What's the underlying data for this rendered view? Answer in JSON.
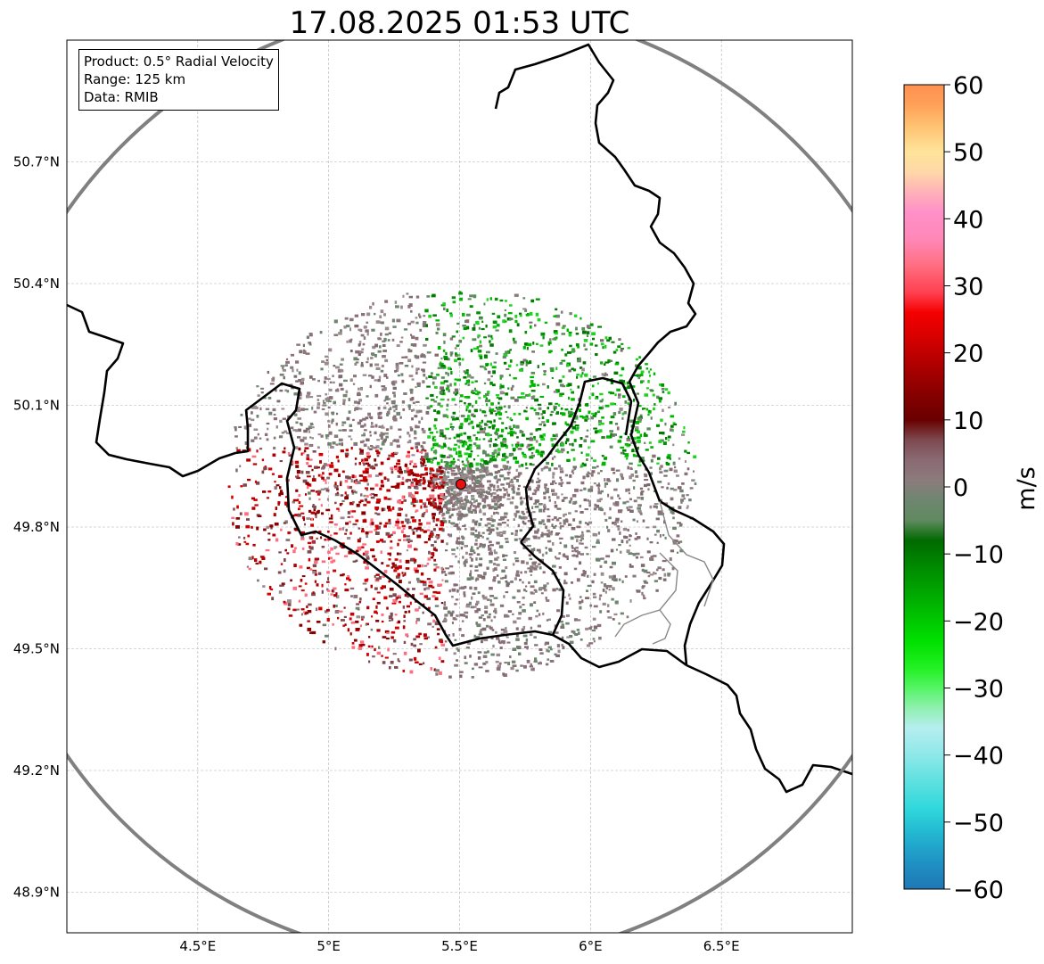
{
  "title": "17.08.2025 01:53 UTC",
  "info": {
    "product": "Product: 0.5° Radial Velocity",
    "range": "Range: 125 km",
    "data": "Data: RMIB"
  },
  "map": {
    "lon_range": [
      4.0,
      7.0
    ],
    "lat_range": [
      48.8,
      51.0
    ],
    "lon_ticks": [
      4.5,
      5.0,
      5.5,
      6.0,
      6.5
    ],
    "lon_tick_labels": [
      "4.5°E",
      "5°E",
      "5.5°E",
      "6°E",
      "6.5°E"
    ],
    "lat_ticks": [
      48.9,
      49.2,
      49.5,
      49.8,
      50.1,
      50.4,
      50.7
    ],
    "lat_tick_labels": [
      "48.9°N",
      "49.2°N",
      "49.5°N",
      "49.8°N",
      "50.1°N",
      "50.4°N",
      "50.7°N"
    ],
    "radar_site": {
      "lon": 5.5,
      "lat": 49.91
    },
    "range_km": 125,
    "gridlines": true,
    "colors": {
      "border": "#000000",
      "region_border": "#888888",
      "range_ring": "#808080",
      "radar_marker": "#e81010"
    }
  },
  "colorbar": {
    "label": "m/s",
    "min": -60,
    "max": 60,
    "ticks": [
      -60,
      -50,
      -40,
      -30,
      -20,
      -10,
      0,
      10,
      20,
      30,
      40,
      50,
      60
    ],
    "tick_labels": [
      "−60",
      "−50",
      "−40",
      "−30",
      "−20",
      "−10",
      "0",
      "10",
      "20",
      "30",
      "40",
      "50",
      "60"
    ],
    "color_stops": [
      {
        "value": -60,
        "color": "#1f77b4"
      },
      {
        "value": -56,
        "color": "#1f92c4"
      },
      {
        "value": -52,
        "color": "#22b4d0"
      },
      {
        "value": -48,
        "color": "#2fd8dc"
      },
      {
        "value": -44,
        "color": "#5de0e0"
      },
      {
        "value": -40,
        "color": "#8ee8e8"
      },
      {
        "value": -36,
        "color": "#b6eef0"
      },
      {
        "value": -33,
        "color": "#90f0b0"
      },
      {
        "value": -30,
        "color": "#55f565"
      },
      {
        "value": -27,
        "color": "#22f022"
      },
      {
        "value": -23,
        "color": "#00e000"
      },
      {
        "value": -18,
        "color": "#00b800"
      },
      {
        "value": -13,
        "color": "#009200"
      },
      {
        "value": -8,
        "color": "#006a00"
      },
      {
        "value": -5,
        "color": "#5f8a5f"
      },
      {
        "value": -2,
        "color": "#6e8670"
      },
      {
        "value": 1,
        "color": "#8c7b7c"
      },
      {
        "value": 4,
        "color": "#8a6a73"
      },
      {
        "value": 7,
        "color": "#7d4a50"
      },
      {
        "value": 10,
        "color": "#6a0000"
      },
      {
        "value": 14,
        "color": "#880000"
      },
      {
        "value": 18,
        "color": "#ad0000"
      },
      {
        "value": 22,
        "color": "#d40000"
      },
      {
        "value": 26,
        "color": "#f50000"
      },
      {
        "value": 29,
        "color": "#ff4050"
      },
      {
        "value": 33,
        "color": "#ff6e80"
      },
      {
        "value": 37,
        "color": "#ff88b8"
      },
      {
        "value": 41,
        "color": "#ff90c8"
      },
      {
        "value": 44,
        "color": "#ffb2b8"
      },
      {
        "value": 47,
        "color": "#ffd8a8"
      },
      {
        "value": 50,
        "color": "#ffe49a"
      },
      {
        "value": 54,
        "color": "#ffc070"
      },
      {
        "value": 57,
        "color": "#ffa058"
      },
      {
        "value": 60,
        "color": "#ff9050"
      }
    ]
  }
}
